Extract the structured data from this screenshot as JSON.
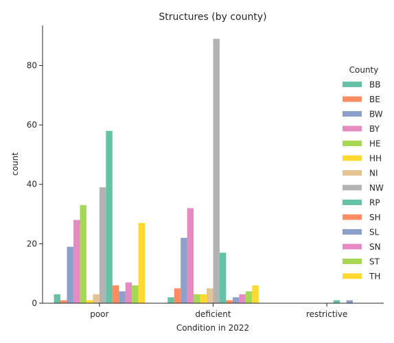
{
  "chart_data": {
    "type": "bar",
    "title": "Structures (by county)",
    "xlabel": "Condition in 2022",
    "ylabel": "count",
    "categories": [
      "poor",
      "deficient",
      "restrictive"
    ],
    "ylim": [
      0,
      93.5
    ],
    "yticks": [
      0,
      20,
      40,
      60,
      80
    ],
    "grid": false,
    "legend": {
      "title": "County",
      "placement": "right"
    },
    "series": [
      {
        "name": "BB",
        "color": "#66c2a5",
        "values": [
          3,
          2,
          0
        ]
      },
      {
        "name": "BE",
        "color": "#fc8d62",
        "values": [
          1,
          5,
          0
        ]
      },
      {
        "name": "BW",
        "color": "#8da0cb",
        "values": [
          19,
          22,
          0
        ]
      },
      {
        "name": "BY",
        "color": "#e78ac3",
        "values": [
          28,
          32,
          0
        ]
      },
      {
        "name": "HE",
        "color": "#a6d854",
        "values": [
          33,
          3,
          0
        ]
      },
      {
        "name": "HH",
        "color": "#ffd92f",
        "values": [
          1,
          3,
          0
        ]
      },
      {
        "name": "NI",
        "color": "#e5c494",
        "values": [
          3,
          5,
          0
        ]
      },
      {
        "name": "NW",
        "color": "#b3b3b3",
        "values": [
          39,
          89,
          0
        ]
      },
      {
        "name": "RP",
        "color": "#66c2a5",
        "values": [
          58,
          17,
          1
        ]
      },
      {
        "name": "SH",
        "color": "#fc8d62",
        "values": [
          6,
          1,
          0
        ]
      },
      {
        "name": "SL",
        "color": "#8da0cb",
        "values": [
          4,
          2,
          1
        ]
      },
      {
        "name": "SN",
        "color": "#e78ac3",
        "values": [
          7,
          3,
          0
        ]
      },
      {
        "name": "ST",
        "color": "#a6d854",
        "values": [
          6,
          4,
          0
        ]
      },
      {
        "name": "TH",
        "color": "#ffd92f",
        "values": [
          27,
          6,
          0
        ]
      }
    ]
  }
}
